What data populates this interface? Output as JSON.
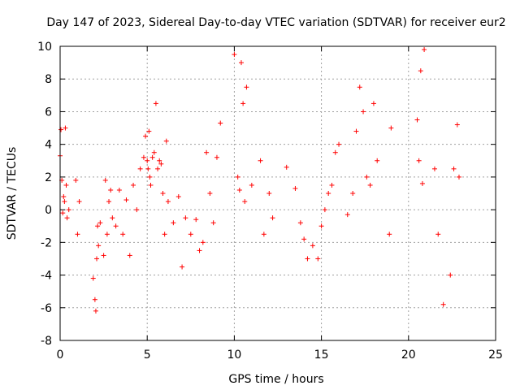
{
  "chart_data": {
    "type": "scatter",
    "title": "Day 147 of 2023, Sidereal Day-to-day VTEC variation (SDTVAR) for receiver eur2",
    "xlabel": "GPS time / hours",
    "ylabel": "SDTVAR / TECUs",
    "xlim": [
      0,
      25
    ],
    "ylim": [
      -8,
      10
    ],
    "xticks": [
      0,
      5,
      10,
      15,
      20,
      25
    ],
    "yticks": [
      -8,
      -6,
      -4,
      -2,
      0,
      2,
      4,
      6,
      8,
      10
    ],
    "grid": true,
    "marker": "+",
    "colors": {
      "series": "#ff0000",
      "grid": "#a0a0a0",
      "axes": "#000000"
    },
    "series": [
      {
        "name": "SDTVAR",
        "x": [
          0.0,
          0.05,
          0.1,
          0.15,
          0.2,
          0.25,
          0.3,
          0.35,
          0.4,
          0.5,
          0.9,
          1.0,
          1.1,
          1.9,
          2.0,
          2.05,
          2.1,
          2.15,
          2.2,
          2.3,
          2.5,
          2.6,
          2.7,
          2.8,
          2.9,
          3.0,
          3.2,
          3.4,
          3.6,
          3.8,
          4.0,
          4.2,
          4.4,
          4.6,
          4.8,
          4.9,
          5.0,
          5.05,
          5.1,
          5.15,
          5.2,
          5.3,
          5.4,
          5.5,
          5.6,
          5.7,
          5.8,
          5.9,
          6.0,
          6.1,
          6.2,
          6.5,
          6.8,
          7.0,
          7.2,
          7.5,
          7.8,
          8.0,
          8.2,
          8.4,
          8.6,
          8.8,
          9.0,
          9.2,
          10.0,
          10.2,
          10.3,
          10.4,
          10.5,
          10.6,
          10.7,
          11.0,
          11.5,
          11.7,
          12.0,
          12.2,
          13.0,
          13.5,
          13.8,
          14.0,
          14.2,
          14.5,
          14.8,
          15.0,
          15.2,
          15.4,
          15.6,
          15.8,
          16.0,
          16.5,
          16.8,
          17.0,
          17.2,
          17.4,
          17.6,
          17.8,
          18.0,
          18.2,
          18.9,
          19.0,
          20.5,
          20.6,
          20.7,
          20.8,
          20.9,
          21.5,
          21.7,
          22.0,
          22.4,
          22.6,
          22.8,
          22.9
        ],
        "y": [
          3.3,
          4.9,
          1.8,
          -0.2,
          0.8,
          0.5,
          5.0,
          1.5,
          -0.5,
          0.0,
          1.8,
          -1.5,
          0.5,
          -4.2,
          -5.5,
          -6.2,
          -3.0,
          -1.0,
          -2.2,
          -0.8,
          -2.8,
          1.8,
          -1.5,
          0.5,
          1.2,
          -0.5,
          -1.0,
          1.2,
          -1.5,
          0.6,
          -2.8,
          1.5,
          0.0,
          2.5,
          3.2,
          4.5,
          3.0,
          2.5,
          4.8,
          2.0,
          1.5,
          3.2,
          3.5,
          6.5,
          2.5,
          3.0,
          2.8,
          1.0,
          -1.5,
          4.2,
          0.5,
          -0.8,
          0.8,
          -3.5,
          -0.5,
          -1.5,
          -0.6,
          -2.5,
          -2.0,
          3.5,
          1.0,
          -0.8,
          3.2,
          5.3,
          9.5,
          2.0,
          1.2,
          9.0,
          6.5,
          0.5,
          7.5,
          1.5,
          3.0,
          -1.5,
          1.0,
          -0.5,
          2.6,
          1.3,
          -0.8,
          -1.8,
          -3.0,
          -2.2,
          -3.0,
          -1.0,
          0.0,
          1.0,
          1.5,
          3.5,
          4.0,
          -0.3,
          1.0,
          4.8,
          7.5,
          6.0,
          2.0,
          1.5,
          6.5,
          3.0,
          -1.5,
          5.0,
          5.5,
          3.0,
          8.5,
          1.6,
          9.8,
          2.5,
          -1.5,
          -5.8,
          -4.0,
          2.5,
          5.2,
          2.0
        ]
      }
    ]
  }
}
